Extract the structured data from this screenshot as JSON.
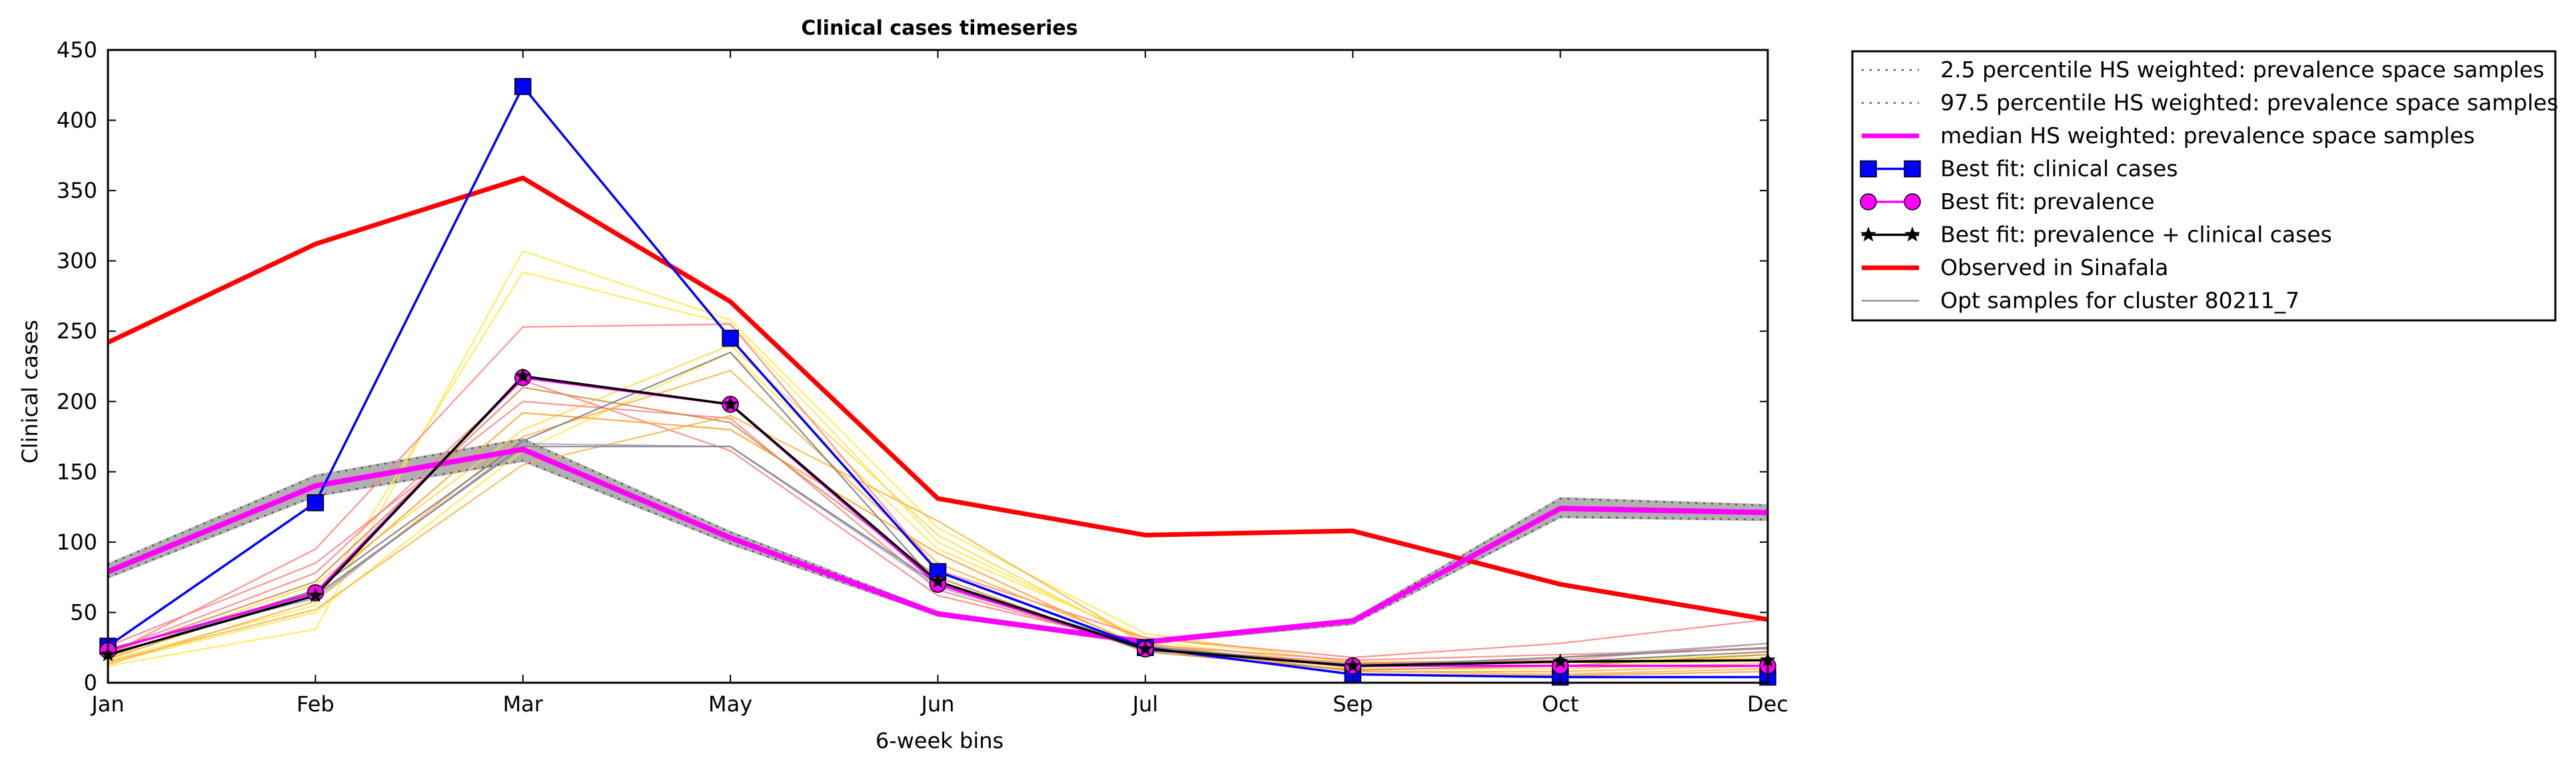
{
  "chart_data": {
    "type": "line",
    "title": "Clinical cases timeseries",
    "xlabel": "6-week bins",
    "ylabel": "Clinical cases",
    "categories": [
      "Jan",
      "Feb",
      "Mar",
      "May",
      "Jun",
      "Jul",
      "Sep",
      "Oct",
      "Dec"
    ],
    "ylim": [
      0,
      450
    ],
    "yticks": [
      0,
      50,
      100,
      150,
      200,
      250,
      300,
      350,
      400,
      450
    ],
    "grid": false,
    "legend_position": "outside-right-top",
    "band": {
      "low": [
        74,
        132,
        157,
        98,
        47,
        27,
        41,
        117,
        115
      ],
      "high": [
        85,
        148,
        174,
        108,
        51,
        31,
        46,
        132,
        127
      ],
      "color": "#b0b0b0"
    },
    "series": [
      {
        "name": "2.5 percentile HS weighted: prevalence space samples",
        "values": [
          75,
          133,
          158,
          99,
          48,
          28,
          42,
          118,
          116
        ],
        "color": "#555555",
        "style": "dotted",
        "marker": "none"
      },
      {
        "name": "97.5 percentile HS weighted: prevalence space samples",
        "values": [
          84,
          147,
          173,
          107,
          50,
          30,
          45,
          131,
          126
        ],
        "color": "#555555",
        "style": "dotted",
        "marker": "none"
      },
      {
        "name": "median HS weighted: prevalence space samples",
        "values": [
          79,
          140,
          166,
          103,
          49,
          29,
          44,
          124,
          121
        ],
        "color": "#ff00ff",
        "style": "solid",
        "marker": "none"
      },
      {
        "name": "Best fit: clinical cases",
        "values": [
          26,
          128,
          424,
          245,
          79,
          25,
          6,
          4,
          4
        ],
        "color": "#0000ff",
        "style": "solid",
        "marker": "square"
      },
      {
        "name": "Best fit: prevalence",
        "values": [
          23,
          64,
          217,
          198,
          70,
          24,
          12,
          12,
          12
        ],
        "color": "#ff00ff",
        "style": "solid",
        "marker": "circle"
      },
      {
        "name": "Best fit: prevalence + clinical cases",
        "values": [
          20,
          62,
          218,
          198,
          72,
          24,
          12,
          15,
          16
        ],
        "color": "#000000",
        "style": "solid",
        "marker": "star"
      },
      {
        "name": "Observed in Sinafala",
        "values": [
          242,
          312,
          359,
          271,
          131,
          105,
          108,
          70,
          45
        ],
        "color": "#ff0000",
        "style": "solid",
        "marker": "none"
      },
      {
        "name": "Opt samples for cluster 80211_7",
        "values": [
          24,
          62,
          168,
          168,
          70,
          26,
          12,
          18,
          25
        ],
        "color": "#888888",
        "style": "solid",
        "marker": "none"
      }
    ],
    "sample_lines": [
      {
        "color": "#ffe84a",
        "values": [
          12,
          38,
          307,
          258,
          110,
          35,
          14,
          14,
          18
        ]
      },
      {
        "color": "#ffe84a",
        "values": [
          16,
          55,
          292,
          255,
          100,
          30,
          12,
          12,
          16
        ]
      },
      {
        "color": "#ffe84a",
        "values": [
          14,
          50,
          165,
          235,
          95,
          32,
          15,
          15,
          20
        ]
      },
      {
        "color": "#ffd84a",
        "values": [
          18,
          70,
          180,
          240,
          105,
          28,
          10,
          10,
          14
        ]
      },
      {
        "color": "#ff8080",
        "values": [
          20,
          95,
          253,
          255,
          80,
          32,
          18,
          28,
          45
        ]
      },
      {
        "color": "#ff8080",
        "values": [
          26,
          85,
          200,
          188,
          66,
          25,
          14,
          16,
          28
        ]
      },
      {
        "color": "#ff8080",
        "values": [
          22,
          78,
          215,
          165,
          62,
          27,
          16,
          20,
          24
        ]
      },
      {
        "color": "#ffb040",
        "values": [
          15,
          52,
          155,
          190,
          115,
          28,
          8,
          8,
          12
        ]
      },
      {
        "color": "#ffb040",
        "values": [
          13,
          58,
          175,
          222,
          85,
          26,
          8,
          6,
          10
        ]
      },
      {
        "color": "#ffa030",
        "values": [
          17,
          65,
          192,
          180,
          92,
          24,
          6,
          5,
          8
        ]
      },
      {
        "color": "#cc8844",
        "values": [
          21,
          72,
          210,
          185,
          75,
          22,
          9,
          12,
          20
        ]
      },
      {
        "color": "#a0a0c0",
        "values": [
          24,
          60,
          170,
          168,
          68,
          26,
          11,
          18,
          28
        ]
      },
      {
        "color": "#777777",
        "values": [
          19,
          66,
          172,
          235,
          70,
          23,
          13,
          15,
          22
        ]
      }
    ]
  }
}
